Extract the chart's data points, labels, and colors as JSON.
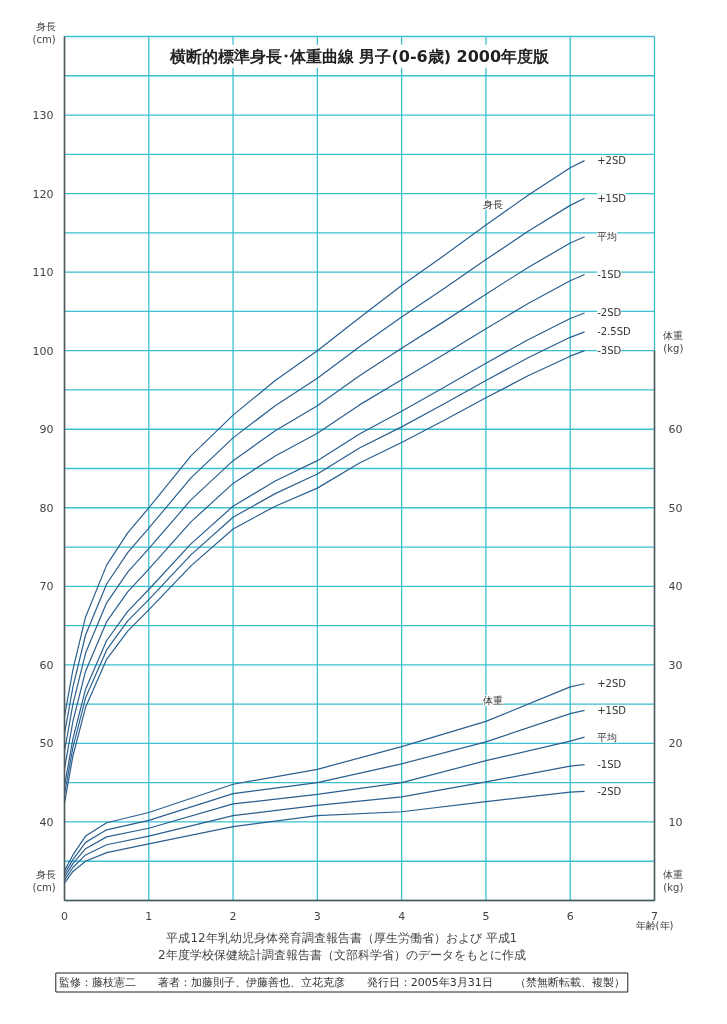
{
  "chart_data": {
    "type": "line",
    "title": "横断的標準身長･体重曲線 男子(0-6歳) 2000年度版",
    "xlabel": "年齢(年)",
    "ylabel": "身長\n(cm)",
    "y2label": "体重\n(kg)",
    "xlim": [
      0,
      7
    ],
    "ylim": [
      30,
      140
    ],
    "y2lim": [
      0,
      110
    ],
    "xticks": [
      0,
      1,
      2,
      3,
      4,
      5,
      6,
      7
    ],
    "yticks": [
      {
        "value": 30,
        "label": null
      },
      {
        "value": 35,
        "label": null
      },
      40,
      {
        "value": 45,
        "label": null
      },
      50,
      {
        "value": 55,
        "label": null
      },
      60,
      {
        "value": 65,
        "label": null
      },
      70,
      {
        "value": 75,
        "label": null
      },
      80,
      {
        "value": 85,
        "label": null
      },
      90,
      {
        "value": 95,
        "label": null
      },
      100,
      {
        "value": 105,
        "label": null
      },
      110,
      {
        "value": 115,
        "label": null
      },
      120,
      {
        "value": 125,
        "label": null
      },
      130,
      {
        "value": 135,
        "label": null
      },
      {
        "value": 140,
        "label": null
      }
    ],
    "y2ticks": [
      {
        "value": 0,
        "label": null
      },
      10,
      20,
      30,
      40,
      50,
      60,
      {
        "value": 70,
        "label": null
      }
    ],
    "grid": true,
    "annotations": [
      "平成12年乳幼児身体発育調査報告書（厚生労働省）および 平成12年度学校保健統計調査報告書（文部科学省）のデータをもとに作成",
      "監修：藤枝憲二　　著者：加藤則子、伊藤善也、立花克彦　　発行日：2005年3月31日　　（禁無断転載、複製）",
      "身長",
      "体重"
    ],
    "series": [
      {
        "name": "+2SD",
        "color": "#2a5f8f",
        "x": [
          0,
          0.1,
          0.25,
          0.5,
          0.75,
          1,
          1.5,
          2,
          2.5,
          3,
          3.5,
          4,
          4.5,
          5,
          5.5,
          6,
          6.17
        ],
        "values": [
          53.4,
          59.4,
          66.1,
          72.7,
          76.8,
          80.0,
          86.6,
          91.8,
          96.2,
          100.0,
          104.2,
          108.3,
          112.1,
          116.0,
          119.8,
          123.3,
          124.2
        ]
      },
      {
        "name": "+1SD",
        "color": "#2a5f8f",
        "x": [
          0,
          0.1,
          0.25,
          0.5,
          0.75,
          1,
          1.5,
          2,
          2.5,
          3,
          3.5,
          4,
          4.5,
          5,
          5.5,
          6,
          6.17
        ],
        "values": [
          51.2,
          57.2,
          63.8,
          70.3,
          74.3,
          77.4,
          83.8,
          88.9,
          93.0,
          96.5,
          100.5,
          104.3,
          107.9,
          111.6,
          115.2,
          118.5,
          119.4
        ]
      },
      {
        "name": "平均",
        "color": "#2a5f8f",
        "x": [
          0,
          0.1,
          0.25,
          0.5,
          0.75,
          1,
          1.5,
          2,
          2.5,
          3,
          3.5,
          4,
          4.5,
          5,
          5.5,
          6,
          6.17
        ],
        "values": [
          49.0,
          55.0,
          61.5,
          67.9,
          71.8,
          74.8,
          81.0,
          86.0,
          89.8,
          93.0,
          96.8,
          100.3,
          103.7,
          107.2,
          110.6,
          113.7,
          114.5
        ]
      },
      {
        "name": "-1SD",
        "color": "#2a5f8f",
        "x": [
          0,
          0.1,
          0.25,
          0.5,
          0.75,
          1,
          1.5,
          2,
          2.5,
          3,
          3.5,
          4,
          4.5,
          5,
          5.5,
          6,
          6.17
        ],
        "values": [
          46.8,
          52.8,
          59.2,
          65.5,
          69.3,
          72.2,
          78.2,
          83.1,
          86.6,
          89.5,
          93.1,
          96.3,
          99.5,
          102.8,
          106.0,
          108.9,
          109.7
        ]
      },
      {
        "name": "-2SD",
        "color": "#2a5f8f",
        "x": [
          0,
          0.1,
          0.25,
          0.5,
          0.75,
          1,
          1.5,
          2,
          2.5,
          3,
          3.5,
          4,
          4.5,
          5,
          5.5,
          6,
          6.17
        ],
        "values": [
          44.6,
          50.6,
          56.9,
          63.1,
          66.8,
          69.6,
          75.4,
          80.2,
          83.4,
          86.0,
          89.4,
          92.3,
          95.3,
          98.4,
          101.4,
          104.1,
          104.8
        ]
      },
      {
        "name": "-2.5SD",
        "color": "#2a5f8f",
        "x": [
          0,
          0.1,
          0.25,
          0.5,
          0.75,
          1,
          1.5,
          2,
          2.5,
          3,
          3.5,
          4,
          4.5,
          5,
          5.5,
          6,
          6.17
        ],
        "values": [
          43.5,
          49.5,
          55.8,
          61.9,
          65.6,
          68.3,
          74.0,
          78.8,
          81.8,
          84.3,
          87.6,
          90.3,
          93.2,
          96.2,
          99.1,
          101.7,
          102.4
        ]
      },
      {
        "name": "-3SD",
        "color": "#2a5f8f",
        "x": [
          0,
          0.1,
          0.25,
          0.5,
          0.75,
          1,
          1.5,
          2,
          2.5,
          3,
          3.5,
          4,
          4.5,
          5,
          5.5,
          6,
          6.17
        ],
        "values": [
          42.4,
          48.4,
          54.6,
          60.7,
          64.3,
          67.0,
          72.6,
          77.3,
          80.2,
          82.5,
          85.7,
          88.3,
          91.1,
          94.0,
          96.8,
          99.3,
          100.0
        ]
      },
      {
        "name": "+2SD",
        "color": "#2a5f8f",
        "axis": "y2",
        "x": [
          0,
          0.1,
          0.25,
          0.5,
          1,
          2,
          3,
          4,
          5,
          6,
          6.17
        ],
        "values": [
          3.8,
          5.8,
          8.2,
          9.9,
          11.2,
          14.8,
          16.7,
          19.6,
          22.8,
          27.2,
          27.6
        ]
      },
      {
        "name": "+1SD",
        "color": "#2a5f8f",
        "axis": "y2",
        "x": [
          0,
          0.1,
          0.25,
          0.5,
          1,
          2,
          3,
          4,
          5,
          6,
          6.17
        ],
        "values": [
          3.4,
          5.2,
          7.4,
          9.0,
          10.2,
          13.6,
          15.0,
          17.4,
          20.2,
          23.8,
          24.2
        ]
      },
      {
        "name": "平均",
        "color": "#2a5f8f",
        "axis": "y2",
        "x": [
          0,
          0.1,
          0.25,
          0.5,
          1,
          2,
          3,
          4,
          5,
          6,
          6.17
        ],
        "values": [
          3.0,
          4.7,
          6.6,
          8.1,
          9.2,
          12.3,
          13.5,
          15.0,
          17.8,
          20.3,
          20.8
        ]
      },
      {
        "name": "-1SD",
        "color": "#2a5f8f",
        "axis": "y2",
        "x": [
          0,
          0.1,
          0.25,
          0.5,
          1,
          2,
          3,
          4,
          5,
          6,
          6.17
        ],
        "values": [
          2.6,
          4.2,
          5.8,
          7.1,
          8.2,
          10.8,
          12.1,
          13.2,
          15.1,
          17.1,
          17.3
        ]
      },
      {
        "name": "-2SD",
        "color": "#2a5f8f",
        "axis": "y2",
        "x": [
          0,
          0.1,
          0.25,
          0.5,
          1,
          2,
          3,
          4,
          5,
          6,
          6.17
        ],
        "values": [
          2.2,
          3.7,
          5.0,
          6.1,
          7.2,
          9.4,
          10.8,
          11.3,
          12.6,
          13.8,
          13.9
        ]
      }
    ]
  }
}
